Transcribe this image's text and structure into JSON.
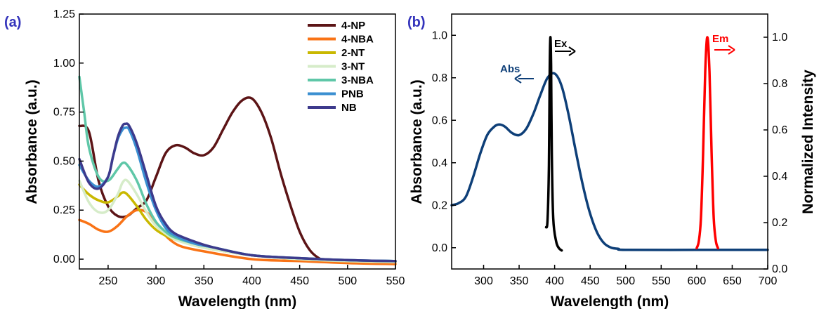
{
  "chart_data": [
    {
      "panel_label": "(a)",
      "type": "line",
      "xlabel": "Wavelength (nm)",
      "ylabel": "Absorbance (a.u.)",
      "xlim": [
        220,
        550
      ],
      "ylim": [
        -0.05,
        1.25
      ],
      "xticks": [
        250,
        300,
        350,
        400,
        450,
        500,
        550
      ],
      "yticks": [
        0.0,
        0.25,
        0.5,
        0.75,
        1.0,
        1.25
      ],
      "ytick_labels": [
        "0.00",
        "0.25",
        "0.50",
        "0.75",
        "1.00",
        "1.25"
      ],
      "legend_position": "top-right",
      "series": [
        {
          "name": "4-NP",
          "color": "#5c1416",
          "points": [
            [
              220,
              0.68
            ],
            [
              230,
              0.65
            ],
            [
              240,
              0.4
            ],
            [
              250,
              0.27
            ],
            [
              260,
              0.22
            ],
            [
              270,
              0.22
            ],
            [
              280,
              0.26
            ],
            [
              290,
              0.3
            ],
            [
              300,
              0.42
            ],
            [
              310,
              0.54
            ],
            [
              320,
              0.58
            ],
            [
              330,
              0.57
            ],
            [
              340,
              0.54
            ],
            [
              350,
              0.53
            ],
            [
              360,
              0.57
            ],
            [
              370,
              0.66
            ],
            [
              380,
              0.75
            ],
            [
              390,
              0.81
            ],
            [
              400,
              0.82
            ],
            [
              410,
              0.75
            ],
            [
              420,
              0.62
            ],
            [
              430,
              0.44
            ],
            [
              440,
              0.28
            ],
            [
              450,
              0.14
            ],
            [
              460,
              0.05
            ],
            [
              470,
              0.005
            ],
            [
              480,
              -0.01
            ],
            [
              500,
              -0.015
            ],
            [
              550,
              -0.015
            ]
          ]
        },
        {
          "name": "4-NBA",
          "color": "#f97316",
          "points": [
            [
              220,
              0.2
            ],
            [
              230,
              0.18
            ],
            [
              240,
              0.15
            ],
            [
              250,
              0.14
            ],
            [
              260,
              0.17
            ],
            [
              270,
              0.22
            ],
            [
              280,
              0.25
            ],
            [
              290,
              0.24
            ],
            [
              300,
              0.18
            ],
            [
              310,
              0.12
            ],
            [
              320,
              0.08
            ],
            [
              330,
              0.06
            ],
            [
              350,
              0.04
            ],
            [
              400,
              0.0
            ],
            [
              450,
              -0.01
            ],
            [
              500,
              -0.02
            ],
            [
              550,
              -0.025
            ]
          ]
        },
        {
          "name": "2-NT",
          "color": "#c9b800",
          "points": [
            [
              220,
              0.38
            ],
            [
              230,
              0.33
            ],
            [
              240,
              0.3
            ],
            [
              250,
              0.29
            ],
            [
              260,
              0.32
            ],
            [
              265,
              0.34
            ],
            [
              270,
              0.33
            ],
            [
              280,
              0.27
            ],
            [
              290,
              0.2
            ],
            [
              300,
              0.15
            ],
            [
              310,
              0.12
            ],
            [
              320,
              0.1
            ],
            [
              340,
              0.07
            ],
            [
              360,
              0.05
            ],
            [
              400,
              0.02
            ],
            [
              450,
              0.0
            ],
            [
              500,
              -0.01
            ],
            [
              550,
              -0.015
            ]
          ]
        },
        {
          "name": "3-NT",
          "color": "#d6ecc9",
          "points": [
            [
              220,
              0.4
            ],
            [
              230,
              0.29
            ],
            [
              240,
              0.24
            ],
            [
              250,
              0.25
            ],
            [
              260,
              0.33
            ],
            [
              265,
              0.39
            ],
            [
              270,
              0.4
            ],
            [
              280,
              0.33
            ],
            [
              290,
              0.24
            ],
            [
              300,
              0.17
            ],
            [
              310,
              0.13
            ],
            [
              320,
              0.1
            ],
            [
              340,
              0.07
            ],
            [
              360,
              0.05
            ],
            [
              400,
              0.02
            ],
            [
              450,
              0.0
            ],
            [
              500,
              -0.01
            ],
            [
              550,
              -0.015
            ]
          ]
        },
        {
          "name": "3-NBA",
          "color": "#5fc7a8",
          "points": [
            [
              220,
              0.93
            ],
            [
              225,
              0.75
            ],
            [
              230,
              0.57
            ],
            [
              240,
              0.42
            ],
            [
              250,
              0.4
            ],
            [
              260,
              0.46
            ],
            [
              265,
              0.49
            ],
            [
              270,
              0.48
            ],
            [
              280,
              0.4
            ],
            [
              290,
              0.28
            ],
            [
              300,
              0.19
            ],
            [
              310,
              0.14
            ],
            [
              320,
              0.11
            ],
            [
              340,
              0.08
            ],
            [
              360,
              0.06
            ],
            [
              400,
              0.02
            ],
            [
              450,
              0.005
            ],
            [
              500,
              -0.005
            ],
            [
              550,
              -0.01
            ]
          ]
        },
        {
          "name": "PNB",
          "color": "#3b8fd1",
          "points": [
            [
              220,
              0.48
            ],
            [
              230,
              0.4
            ],
            [
              240,
              0.37
            ],
            [
              250,
              0.42
            ],
            [
              255,
              0.52
            ],
            [
              260,
              0.61
            ],
            [
              265,
              0.66
            ],
            [
              268,
              0.67
            ],
            [
              272,
              0.66
            ],
            [
              280,
              0.56
            ],
            [
              290,
              0.39
            ],
            [
              300,
              0.25
            ],
            [
              310,
              0.16
            ],
            [
              320,
              0.12
            ],
            [
              340,
              0.08
            ],
            [
              360,
              0.06
            ],
            [
              400,
              0.02
            ],
            [
              450,
              0.005
            ],
            [
              500,
              -0.005
            ],
            [
              550,
              -0.01
            ]
          ]
        },
        {
          "name": "NB",
          "color": "#3d3a8c",
          "points": [
            [
              220,
              0.51
            ],
            [
              230,
              0.39
            ],
            [
              240,
              0.36
            ],
            [
              250,
              0.42
            ],
            [
              255,
              0.52
            ],
            [
              260,
              0.62
            ],
            [
              265,
              0.68
            ],
            [
              268,
              0.69
            ],
            [
              272,
              0.68
            ],
            [
              280,
              0.59
            ],
            [
              290,
              0.43
            ],
            [
              300,
              0.27
            ],
            [
              310,
              0.18
            ],
            [
              320,
              0.13
            ],
            [
              340,
              0.09
            ],
            [
              360,
              0.06
            ],
            [
              400,
              0.02
            ],
            [
              450,
              0.005
            ],
            [
              500,
              -0.005
            ],
            [
              550,
              -0.01
            ]
          ]
        }
      ]
    },
    {
      "panel_label": "(b)",
      "type": "line",
      "xlabel": "Wavelength (nm)",
      "ylabel": "Absorbance (a.u.)",
      "y2label": "Normalized Intensity",
      "xlim": [
        255,
        700
      ],
      "ylim": [
        -0.1,
        1.1
      ],
      "y2lim": [
        0.0,
        1.1
      ],
      "xticks": [
        300,
        350,
        400,
        450,
        500,
        550,
        600,
        650,
        700
      ],
      "yticks": [
        0.0,
        0.2,
        0.4,
        0.6,
        0.8,
        1.0
      ],
      "ytick_labels": [
        "0.0",
        "0.2",
        "0.4",
        "0.6",
        "0.8",
        "1.0"
      ],
      "y2ticks": [
        0.0,
        0.2,
        0.4,
        0.6,
        0.8,
        1.0
      ],
      "y2tick_labels": [
        "0.0",
        "0.2",
        "0.4",
        "0.6",
        "0.8",
        "1.0"
      ],
      "annotations": {
        "abs": "Abs",
        "ex": "Ex",
        "em": "Em"
      },
      "series": [
        {
          "name": "Abs",
          "axis": "left",
          "color": "#0e3f78",
          "points": [
            [
              255,
              0.2
            ],
            [
              265,
              0.21
            ],
            [
              275,
              0.24
            ],
            [
              285,
              0.33
            ],
            [
              295,
              0.44
            ],
            [
              305,
              0.53
            ],
            [
              315,
              0.57
            ],
            [
              322,
              0.58
            ],
            [
              330,
              0.57
            ],
            [
              340,
              0.54
            ],
            [
              350,
              0.53
            ],
            [
              360,
              0.56
            ],
            [
              370,
              0.63
            ],
            [
              380,
              0.72
            ],
            [
              390,
              0.8
            ],
            [
              400,
              0.82
            ],
            [
              410,
              0.76
            ],
            [
              420,
              0.62
            ],
            [
              430,
              0.45
            ],
            [
              440,
              0.29
            ],
            [
              450,
              0.16
            ],
            [
              460,
              0.07
            ],
            [
              470,
              0.02
            ],
            [
              480,
              0.0
            ],
            [
              490,
              -0.005
            ],
            [
              500,
              -0.01
            ],
            [
              600,
              -0.01
            ],
            [
              700,
              -0.01
            ]
          ]
        },
        {
          "name": "Ex",
          "axis": "right",
          "color": "#000000",
          "points": [
            [
              388,
              0.18
            ],
            [
              390,
              0.21
            ],
            [
              392,
              0.45
            ],
            [
              393,
              0.85
            ],
            [
              394,
              1.0
            ],
            [
              395,
              0.88
            ],
            [
              396,
              0.5
            ],
            [
              398,
              0.22
            ],
            [
              402,
              0.12
            ],
            [
              406,
              0.09
            ],
            [
              410,
              0.08
            ]
          ]
        },
        {
          "name": "Em",
          "axis": "right",
          "color": "#ff0000",
          "points": [
            [
              600,
              0.09
            ],
            [
              603,
              0.12
            ],
            [
              606,
              0.22
            ],
            [
              609,
              0.5
            ],
            [
              612,
              0.85
            ],
            [
              615,
              1.0
            ],
            [
              618,
              0.85
            ],
            [
              621,
              0.5
            ],
            [
              624,
              0.22
            ],
            [
              627,
              0.12
            ],
            [
              630,
              0.09
            ]
          ]
        }
      ]
    }
  ]
}
